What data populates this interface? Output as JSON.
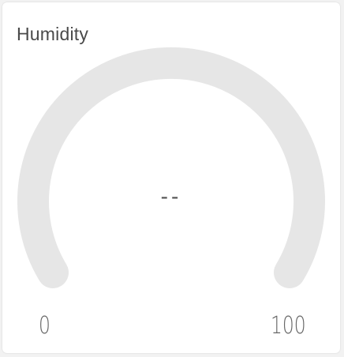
{
  "widget": {
    "title": "Humidity",
    "value_display": "--",
    "min_label": "0",
    "max_label": "100",
    "level": 0
  },
  "colors": {
    "card_background": "#ffffff",
    "track": "#e6e6e6",
    "title_text": "#4a4a4a",
    "label_text": "#666666"
  }
}
